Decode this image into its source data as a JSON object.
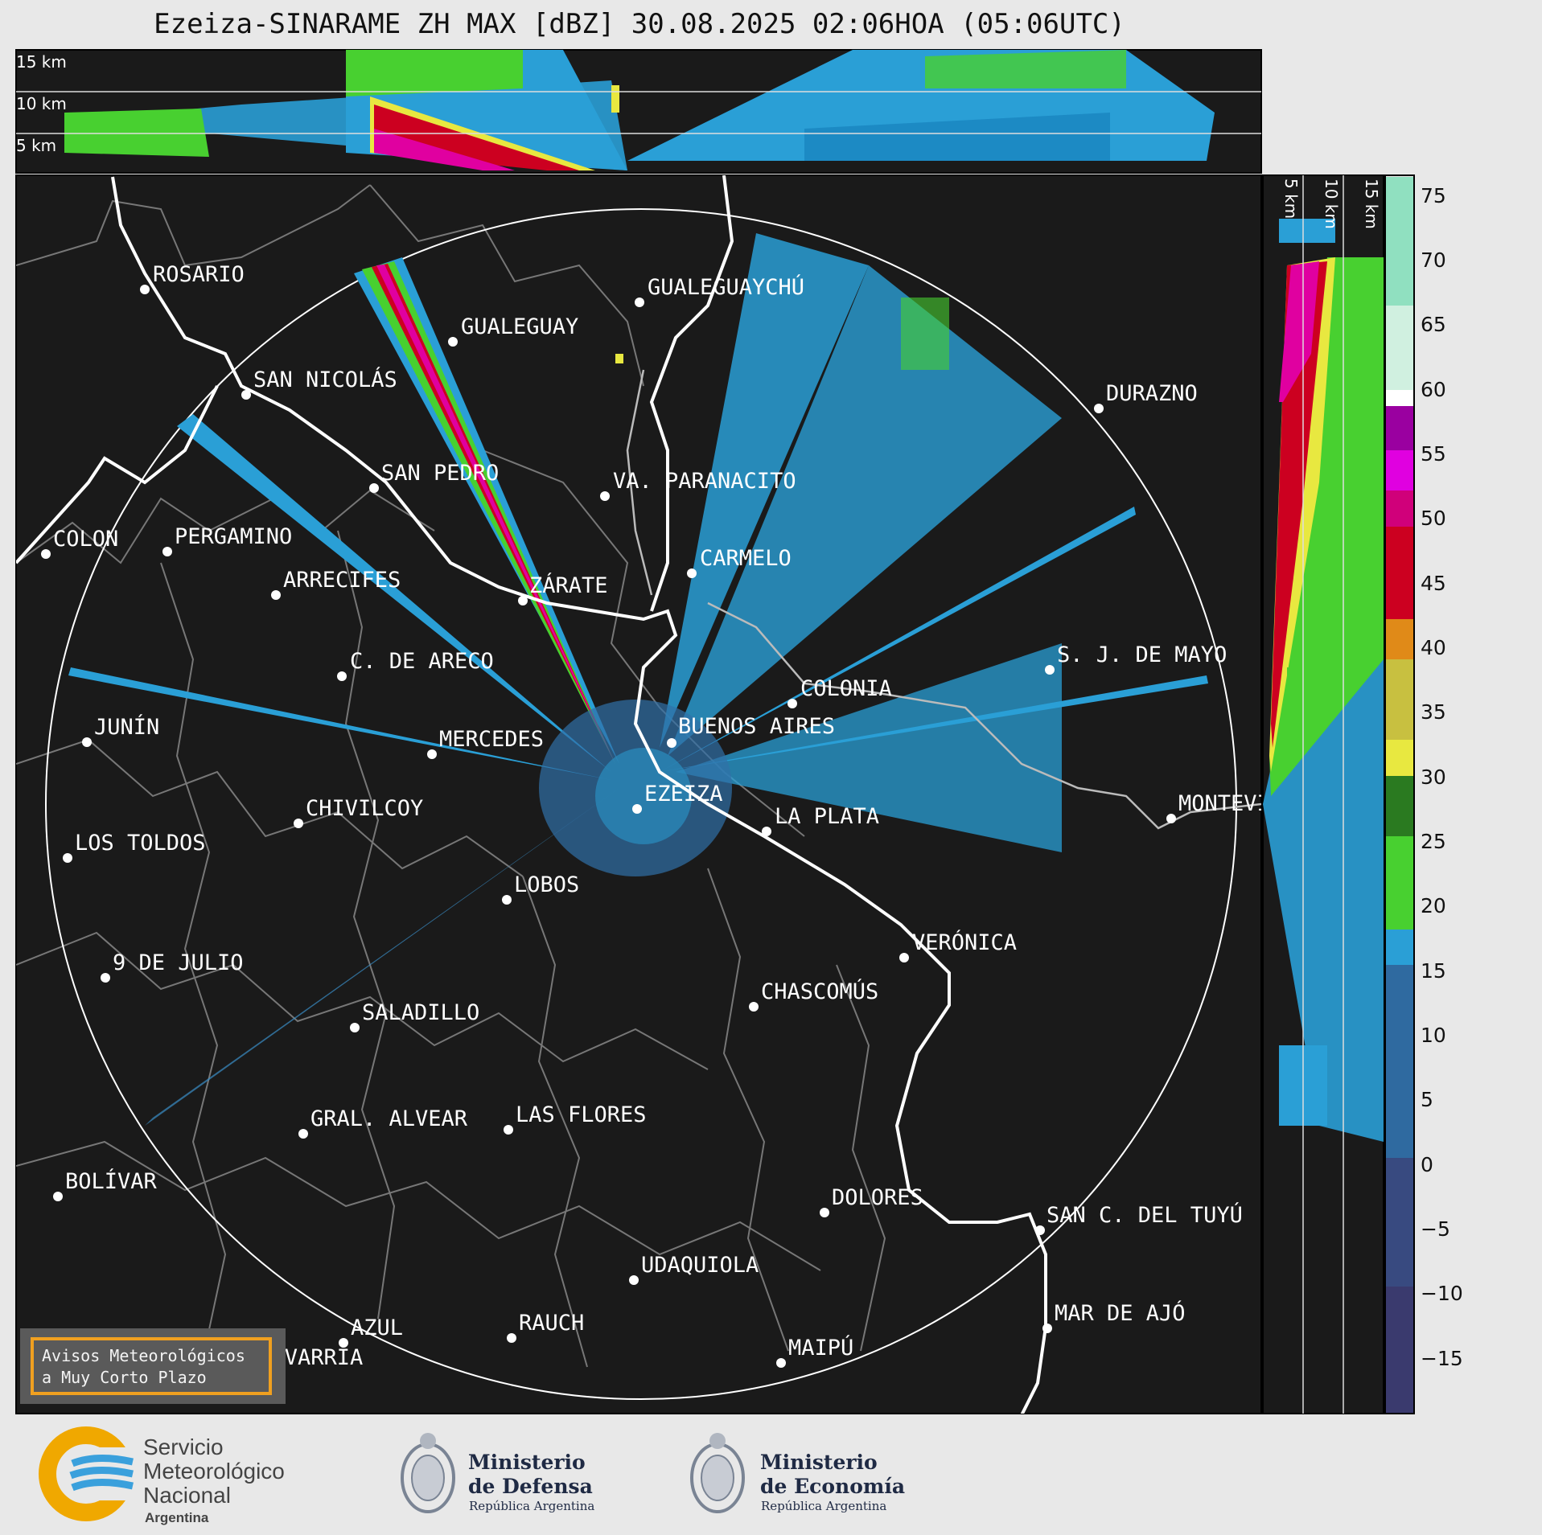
{
  "title": "Ezeiza-SINARAME ZH MAX [dBZ] 30.08.2025 02:06HOA (05:06UTC)",
  "top_profile": {
    "labels": [
      "15 km",
      "10 km",
      "5 km"
    ]
  },
  "side_profile": {
    "labels": [
      "5 km",
      "10 km",
      "15 km"
    ]
  },
  "colorbar": {
    "ticks": [
      "75",
      "70",
      "65",
      "60",
      "55",
      "50",
      "45",
      "40",
      "35",
      "30",
      "25",
      "20",
      "15",
      "10",
      "5",
      "0",
      "−5",
      "−10",
      "−15"
    ]
  },
  "map": {
    "background": "#1a1a1a",
    "cities": [
      {
        "name": "ROSARIO"
      },
      {
        "name": "GUALEGUAYCHÚ"
      },
      {
        "name": "GUALEGUAY"
      },
      {
        "name": "SAN NICOLÁS"
      },
      {
        "name": "DURAZNO"
      },
      {
        "name": "SAN PEDRO"
      },
      {
        "name": "VA. PARANACITO"
      },
      {
        "name": "COLON"
      },
      {
        "name": "PERGAMINO"
      },
      {
        "name": "CARMELO"
      },
      {
        "name": "ARRECIFES"
      },
      {
        "name": "ZÁRATE"
      },
      {
        "name": "S. J. DE MAYO"
      },
      {
        "name": "C. DE ARECO"
      },
      {
        "name": "COLONIA"
      },
      {
        "name": "JUNÍN"
      },
      {
        "name": "MERCEDES"
      },
      {
        "name": "BUENOS AIRES"
      },
      {
        "name": "EZEIZA"
      },
      {
        "name": "MONTEVIDEO"
      },
      {
        "name": "CHIVILCOY"
      },
      {
        "name": "LA PLATA"
      },
      {
        "name": "LOS TOLDOS"
      },
      {
        "name": "LOBOS"
      },
      {
        "name": "VERÓNICA"
      },
      {
        "name": "9 DE JULIO"
      },
      {
        "name": "CHASCOMÚS"
      },
      {
        "name": "SALADILLO"
      },
      {
        "name": "GRAL. ALVEAR"
      },
      {
        "name": "LAS FLORES"
      },
      {
        "name": "BOLÍVAR"
      },
      {
        "name": "DOLORES"
      },
      {
        "name": "SAN C. DEL TUYÚ"
      },
      {
        "name": "UDAQUIOLA"
      },
      {
        "name": "MAR DE AJÓ"
      },
      {
        "name": "AZUL"
      },
      {
        "name": "RAUCH"
      },
      {
        "name": "OLAVARRÍA"
      },
      {
        "name": "MAIPÚ"
      }
    ]
  },
  "avisos": {
    "line1": "Avisos Meteorológicos",
    "line2": "a Muy Corto Plazo"
  },
  "footer": {
    "smn_line1": "Servicio",
    "smn_line2": "Meteorológico",
    "smn_line3": "Nacional",
    "smn_line4": "Argentina",
    "defensa_line1": "Ministerio",
    "defensa_line2": "de Defensa",
    "defensa_sub": "República Argentina",
    "economia_line1": "Ministerio",
    "economia_line2": "de Economía",
    "economia_sub": "República Argentina"
  }
}
